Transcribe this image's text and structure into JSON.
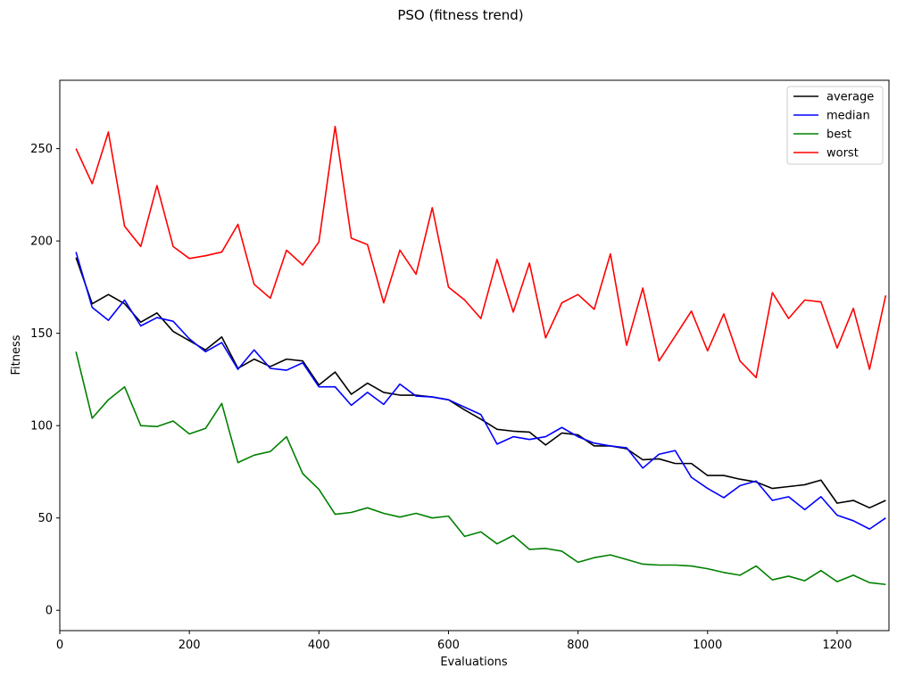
{
  "chart_data": {
    "type": "line",
    "title": "PSO (fitness trend)",
    "xlabel": "Evaluations",
    "ylabel": "Fitness",
    "xlim": [
      0,
      1280
    ],
    "ylim": [
      -11,
      287
    ],
    "xticks": [
      0,
      200,
      400,
      600,
      800,
      1000,
      1200
    ],
    "yticks": [
      0,
      50,
      100,
      150,
      200,
      250
    ],
    "legend_position": "top-right",
    "grid": false,
    "x": [
      25,
      50,
      75,
      100,
      125,
      150,
      175,
      200,
      225,
      250,
      275,
      300,
      325,
      350,
      375,
      400,
      425,
      450,
      475,
      500,
      525,
      550,
      575,
      600,
      625,
      650,
      675,
      700,
      725,
      750,
      775,
      800,
      825,
      850,
      875,
      900,
      925,
      950,
      975,
      1000,
      1025,
      1050,
      1075,
      1100,
      1125,
      1150,
      1175,
      1200,
      1225,
      1250,
      1275
    ],
    "series": [
      {
        "name": "average",
        "color": "#000000",
        "values": [
          191,
          166,
          171,
          166,
          156,
          161,
          151,
          146,
          141,
          148,
          131,
          136,
          132,
          136,
          135,
          122,
          129,
          117,
          123,
          118,
          116.5,
          116.5,
          115.5,
          114,
          108.5,
          103.5,
          98,
          97,
          96.5,
          89.5,
          96,
          95,
          89,
          89,
          87.5,
          81.5,
          82,
          79.5,
          79.5,
          73,
          73,
          71,
          69.5,
          66,
          67,
          68,
          70.5,
          58,
          59.5,
          55.5,
          59.5
        ]
      },
      {
        "name": "median",
        "color": "#0000ff",
        "values": [
          194,
          164,
          157,
          168,
          154,
          158.5,
          156.5,
          147,
          140,
          145,
          130.5,
          141,
          131,
          130,
          134,
          121,
          121,
          111,
          118,
          111.5,
          122.5,
          116,
          115.5,
          114,
          110,
          106,
          90,
          94,
          92.5,
          94,
          99,
          94,
          90.5,
          89,
          88,
          77,
          84.5,
          86.5,
          72,
          66,
          61,
          67.5,
          70,
          59.5,
          61.5,
          54.5,
          61.5,
          51.5,
          48.5,
          44,
          50
        ]
      },
      {
        "name": "best",
        "color": "#008000",
        "values": [
          140,
          104,
          114,
          121,
          100,
          99.5,
          102.5,
          95.5,
          98.5,
          112,
          80,
          84,
          86,
          94,
          74,
          65.5,
          52,
          53,
          55.5,
          52.5,
          50.5,
          52.5,
          50,
          51,
          40,
          42.5,
          36,
          40.5,
          33,
          33.5,
          32,
          26,
          28.5,
          30,
          27.5,
          25,
          24.5,
          24.5,
          24,
          22.5,
          20.5,
          19,
          24,
          16.5,
          18.5,
          16,
          21.5,
          15.5,
          19,
          15,
          14
        ]
      },
      {
        "name": "worst",
        "color": "#ff0000",
        "values": [
          250,
          231,
          259,
          208,
          197,
          230,
          197,
          190.5,
          192,
          194,
          209,
          176.5,
          169,
          195,
          187,
          199.5,
          262,
          201.5,
          198,
          166.5,
          195,
          182,
          218,
          175,
          168,
          158,
          190,
          161.5,
          188,
          147.5,
          166.5,
          171,
          163,
          193,
          143.5,
          174.5,
          135,
          148.5,
          162,
          140.5,
          160.5,
          135,
          126,
          172,
          158,
          168,
          167,
          142,
          163.5,
          130.5,
          170.5
        ]
      }
    ]
  }
}
